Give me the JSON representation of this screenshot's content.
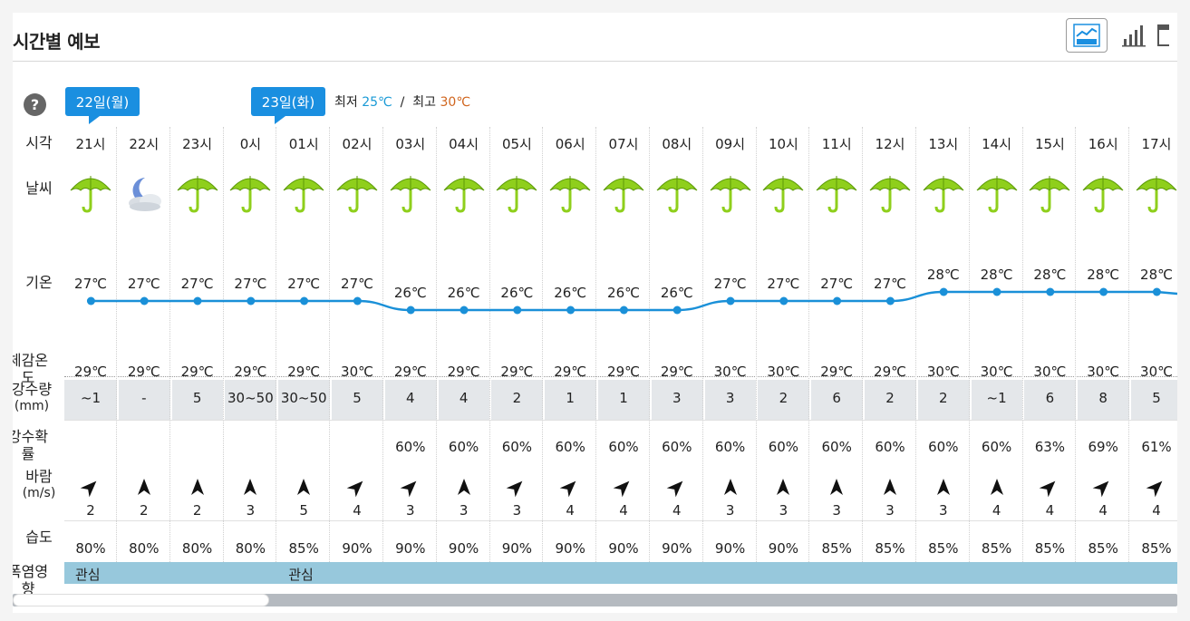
{
  "title": "시간별 예보",
  "view_buttons": [
    {
      "icon": "line-chart-icon",
      "active": true
    },
    {
      "icon": "bar-chart-icon",
      "active": false
    },
    {
      "icon": "table-icon",
      "active": false
    }
  ],
  "help_label": "?",
  "dates": [
    {
      "label": "22일(월)"
    },
    {
      "label": "23일(화)"
    }
  ],
  "minmax": {
    "min_label": "최저",
    "min_value": "25℃",
    "separator": "/",
    "max_label": "최고",
    "max_value": "30℃"
  },
  "row_labels": {
    "time": "시각",
    "weather": "날씨",
    "temp": "기온",
    "feels": "체감온도",
    "rain_amount_1": "강수량",
    "rain_amount_2": "(mm)",
    "rain_prob": "강수확률",
    "wind_1": "바람",
    "wind_2": "(m/s)",
    "humidity": "습도",
    "heat": "폭염영향"
  },
  "hours": [
    {
      "time": "21시",
      "weather": "rain-umbrella-icon",
      "temp": "27℃",
      "temp_value": 27,
      "feels": "29℃",
      "rain": "~1",
      "prob": "",
      "wind_dir": 45,
      "wind": "2",
      "humidity": "80%"
    },
    {
      "time": "22시",
      "weather": "night-cloud-icon",
      "temp": "27℃",
      "temp_value": 27,
      "feels": "29℃",
      "rain": "-",
      "prob": "",
      "wind_dir": 0,
      "wind": "2",
      "humidity": "80%"
    },
    {
      "time": "23시",
      "weather": "rain-umbrella-icon",
      "temp": "27℃",
      "temp_value": 27,
      "feels": "29℃",
      "rain": "5",
      "prob": "",
      "wind_dir": 0,
      "wind": "2",
      "humidity": "80%"
    },
    {
      "time": "0시",
      "weather": "rain-umbrella-icon",
      "temp": "27℃",
      "temp_value": 27,
      "feels": "29℃",
      "rain": "30~50",
      "prob": "",
      "wind_dir": 0,
      "wind": "3",
      "humidity": "80%"
    },
    {
      "time": "01시",
      "weather": "rain-umbrella-icon",
      "temp": "27℃",
      "temp_value": 27,
      "feels": "29℃",
      "rain": "30~50",
      "prob": "",
      "wind_dir": 0,
      "wind": "5",
      "humidity": "85%"
    },
    {
      "time": "02시",
      "weather": "rain-umbrella-icon",
      "temp": "27℃",
      "temp_value": 27,
      "feels": "30℃",
      "rain": "5",
      "prob": "",
      "wind_dir": 45,
      "wind": "4",
      "humidity": "90%"
    },
    {
      "time": "03시",
      "weather": "rain-umbrella-icon",
      "temp": "26℃",
      "temp_value": 26,
      "feels": "29℃",
      "rain": "4",
      "prob": "60%",
      "wind_dir": 45,
      "wind": "3",
      "humidity": "90%"
    },
    {
      "time": "04시",
      "weather": "rain-umbrella-icon",
      "temp": "26℃",
      "temp_value": 26,
      "feels": "29℃",
      "rain": "4",
      "prob": "60%",
      "wind_dir": 0,
      "wind": "3",
      "humidity": "90%"
    },
    {
      "time": "05시",
      "weather": "rain-umbrella-icon",
      "temp": "26℃",
      "temp_value": 26,
      "feels": "29℃",
      "rain": "2",
      "prob": "60%",
      "wind_dir": 45,
      "wind": "3",
      "humidity": "90%"
    },
    {
      "time": "06시",
      "weather": "rain-umbrella-icon",
      "temp": "26℃",
      "temp_value": 26,
      "feels": "29℃",
      "rain": "1",
      "prob": "60%",
      "wind_dir": 45,
      "wind": "4",
      "humidity": "90%"
    },
    {
      "time": "07시",
      "weather": "rain-umbrella-icon",
      "temp": "26℃",
      "temp_value": 26,
      "feels": "29℃",
      "rain": "1",
      "prob": "60%",
      "wind_dir": 45,
      "wind": "4",
      "humidity": "90%"
    },
    {
      "time": "08시",
      "weather": "rain-umbrella-icon",
      "temp": "26℃",
      "temp_value": 26,
      "feels": "29℃",
      "rain": "3",
      "prob": "60%",
      "wind_dir": 45,
      "wind": "4",
      "humidity": "90%"
    },
    {
      "time": "09시",
      "weather": "rain-umbrella-icon",
      "temp": "27℃",
      "temp_value": 27,
      "feels": "30℃",
      "rain": "3",
      "prob": "60%",
      "wind_dir": 0,
      "wind": "3",
      "humidity": "90%"
    },
    {
      "time": "10시",
      "weather": "rain-umbrella-icon",
      "temp": "27℃",
      "temp_value": 27,
      "feels": "30℃",
      "rain": "2",
      "prob": "60%",
      "wind_dir": 0,
      "wind": "3",
      "humidity": "90%"
    },
    {
      "time": "11시",
      "weather": "rain-umbrella-icon",
      "temp": "27℃",
      "temp_value": 27,
      "feels": "29℃",
      "rain": "6",
      "prob": "60%",
      "wind_dir": 0,
      "wind": "3",
      "humidity": "85%"
    },
    {
      "time": "12시",
      "weather": "rain-umbrella-icon",
      "temp": "27℃",
      "temp_value": 27,
      "feels": "29℃",
      "rain": "2",
      "prob": "60%",
      "wind_dir": 0,
      "wind": "3",
      "humidity": "85%"
    },
    {
      "time": "13시",
      "weather": "rain-umbrella-icon",
      "temp": "28℃",
      "temp_value": 28,
      "feels": "30℃",
      "rain": "2",
      "prob": "60%",
      "wind_dir": 0,
      "wind": "3",
      "humidity": "85%"
    },
    {
      "time": "14시",
      "weather": "rain-umbrella-icon",
      "temp": "28℃",
      "temp_value": 28,
      "feels": "30℃",
      "rain": "~1",
      "prob": "60%",
      "wind_dir": 0,
      "wind": "4",
      "humidity": "85%"
    },
    {
      "time": "15시",
      "weather": "rain-umbrella-icon",
      "temp": "28℃",
      "temp_value": 28,
      "feels": "30℃",
      "rain": "6",
      "prob": "63%",
      "wind_dir": 45,
      "wind": "4",
      "humidity": "85%"
    },
    {
      "time": "16시",
      "weather": "rain-umbrella-icon",
      "temp": "28℃",
      "temp_value": 28,
      "feels": "30℃",
      "rain": "8",
      "prob": "69%",
      "wind_dir": 45,
      "wind": "4",
      "humidity": "85%"
    },
    {
      "time": "17시",
      "weather": "rain-umbrella-icon",
      "temp": "28℃",
      "temp_value": 28,
      "feels": "30℃",
      "rain": "5",
      "prob": "61%",
      "wind_dir": 45,
      "wind": "4",
      "humidity": "85%"
    }
  ],
  "heat": [
    {
      "label": "관심",
      "hour_index": 0
    },
    {
      "label": "관심",
      "hour_index": 4
    }
  ],
  "colors": {
    "accent": "#1a8fe0",
    "line": "#1a90d8",
    "heat_bar": "#97c8dc",
    "min": "#1a9ad6",
    "max": "#d0651e"
  }
}
